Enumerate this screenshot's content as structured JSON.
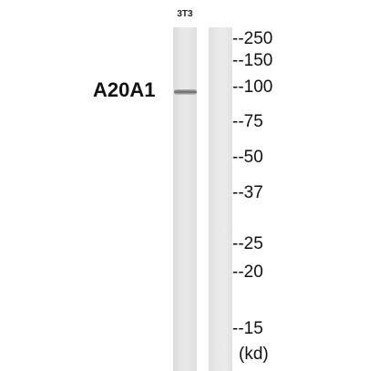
{
  "lane_label": "3T3",
  "protein_label": "A20A1",
  "markers": [
    {
      "label": "--250"
    },
    {
      "label": "--150"
    },
    {
      "label": "--100"
    },
    {
      "label": "--75"
    },
    {
      "label": "--50"
    },
    {
      "label": "--37"
    },
    {
      "label": "--25"
    },
    {
      "label": "--20"
    },
    {
      "label": "--15"
    }
  ],
  "unit": "(kd)"
}
